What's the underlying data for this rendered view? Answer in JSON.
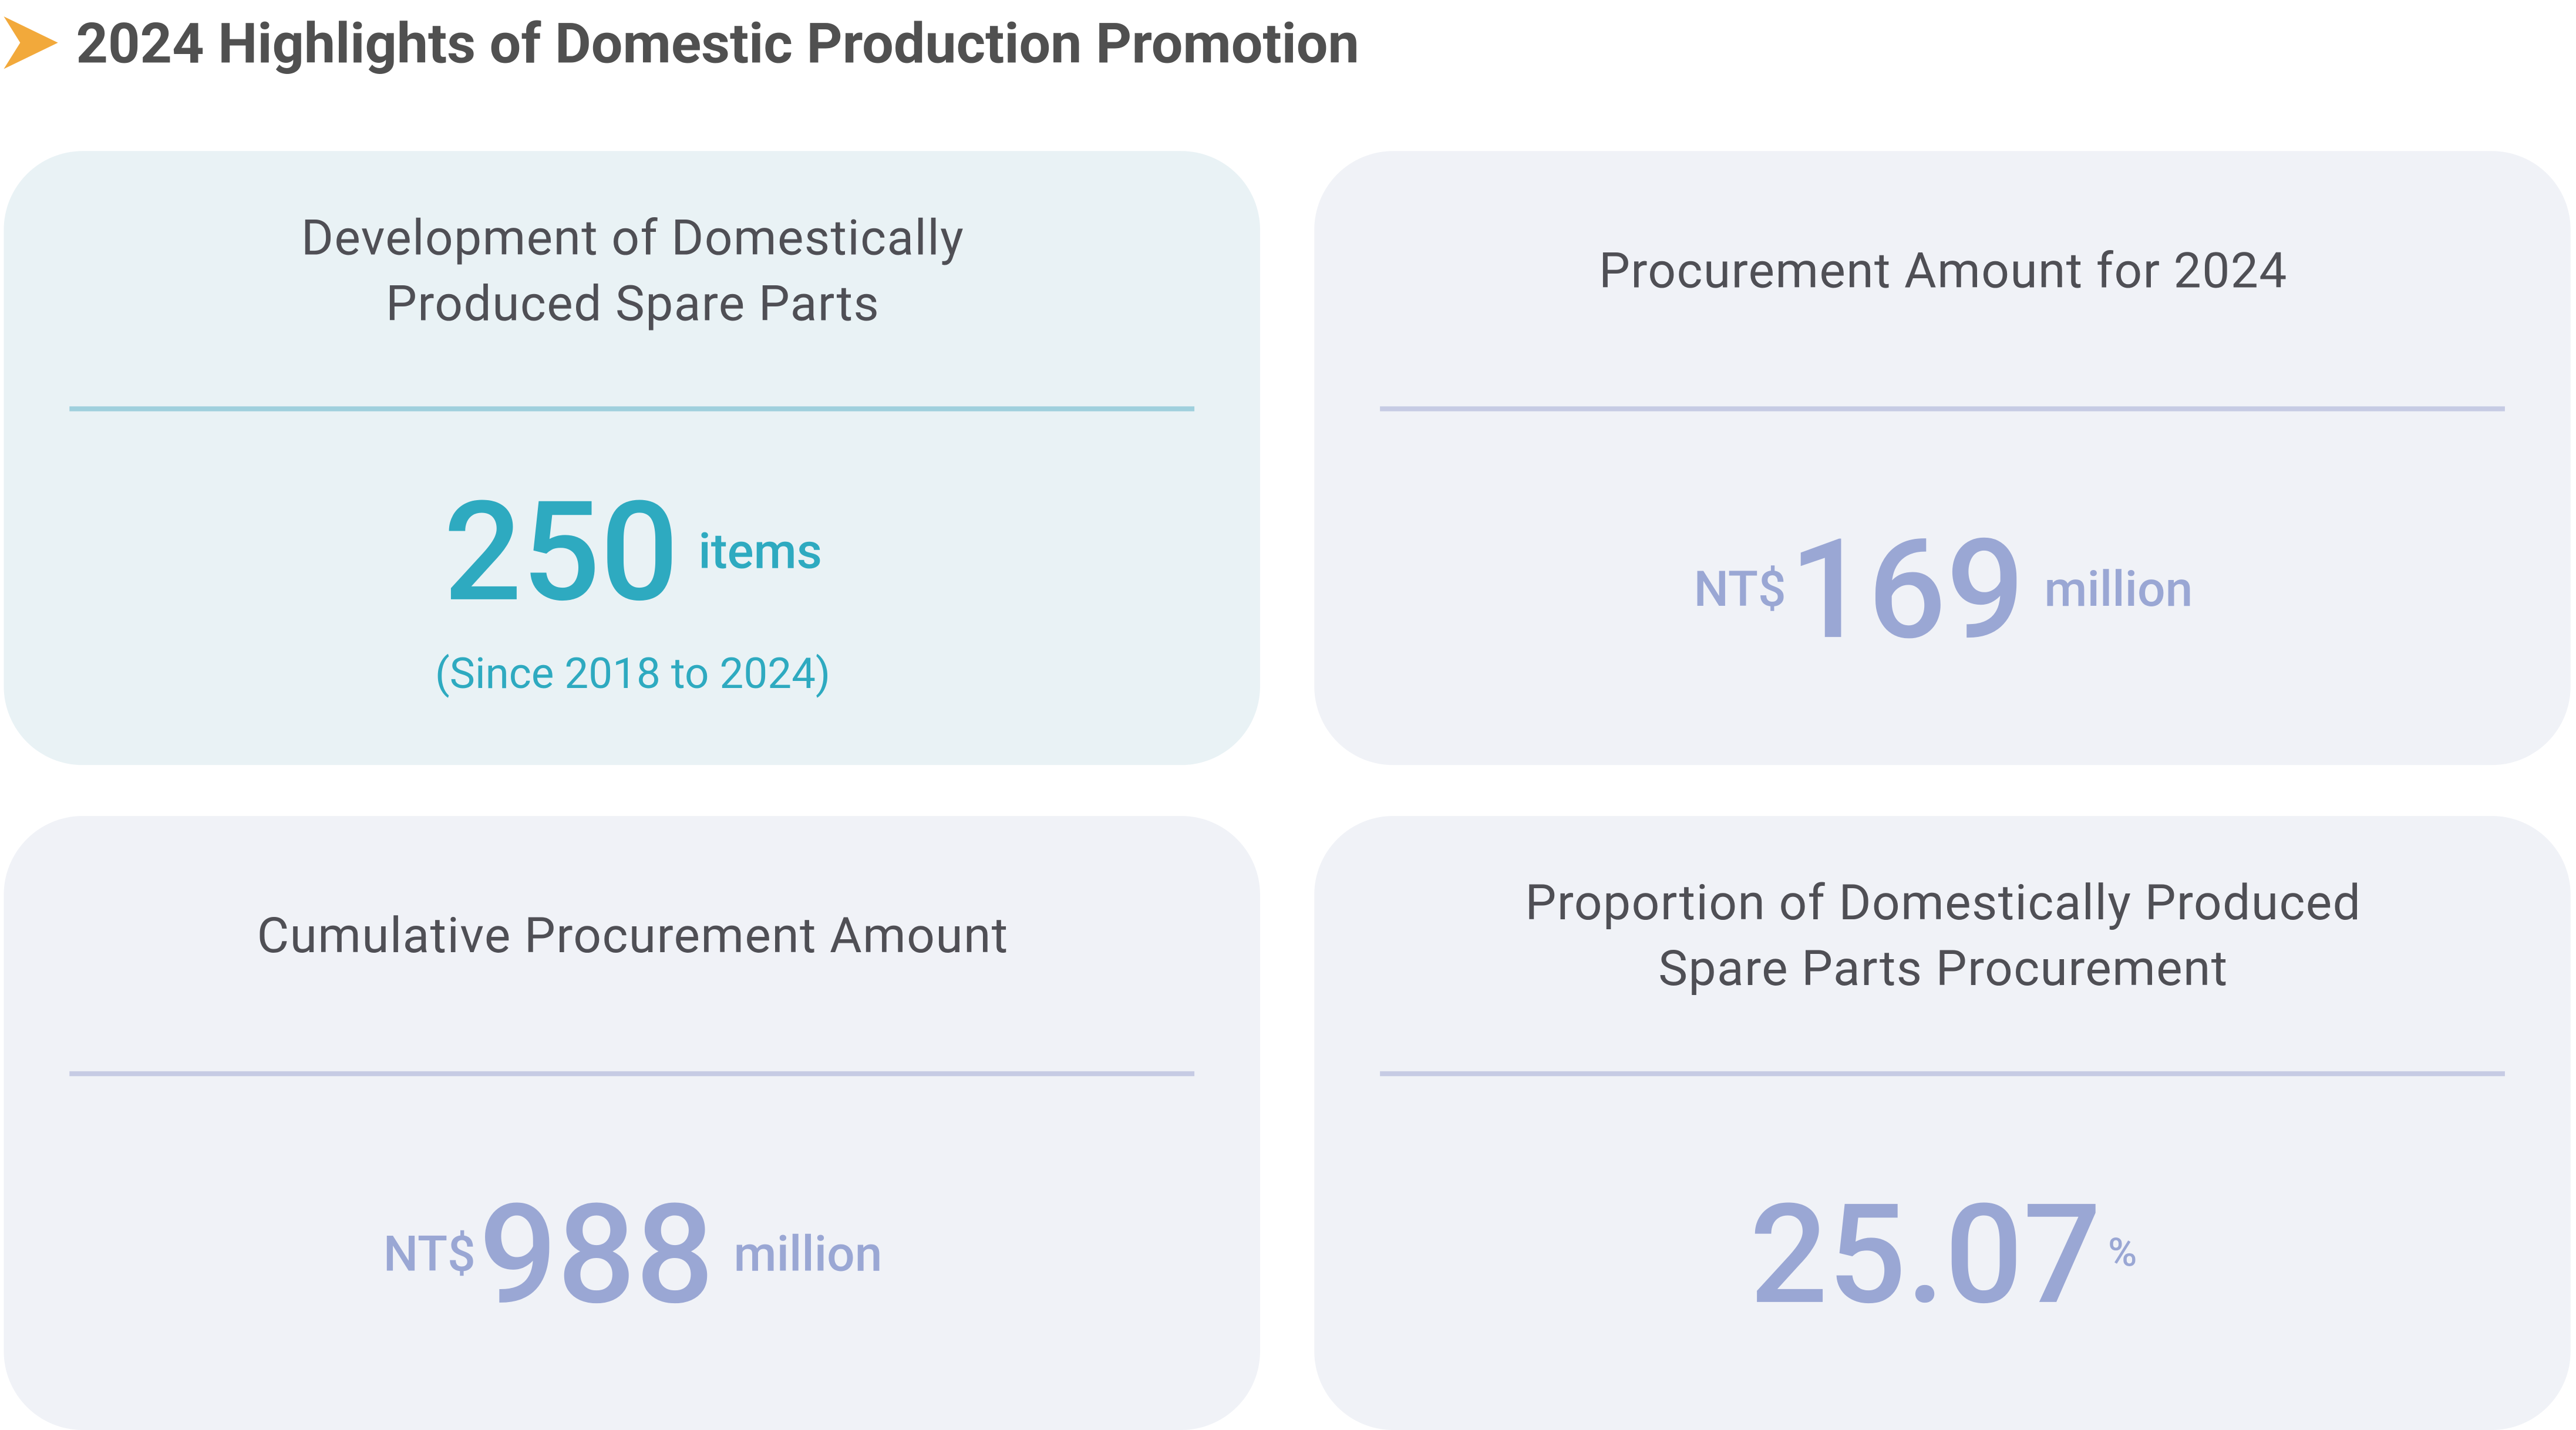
{
  "header": {
    "title": "2024 Highlights of Domestic Production Promotion"
  },
  "cards": [
    {
      "title_lines": [
        "Development of Domestically",
        "Produced Spare Parts"
      ],
      "value": "250",
      "unit": "items",
      "note": "(Since 2018 to 2024)"
    },
    {
      "title_lines": [
        "Procurement Amount for 2024"
      ],
      "prefix": "NT$",
      "value": "169",
      "unit": "million"
    },
    {
      "title_lines": [
        "Cumulative Procurement Amount"
      ],
      "prefix": "NT$",
      "value": "988",
      "unit": "million"
    },
    {
      "title_lines": [
        "Proportion of Domestically Produced",
        "Spare Parts Procurement"
      ],
      "value": "25.07",
      "unit": "%"
    }
  ]
}
